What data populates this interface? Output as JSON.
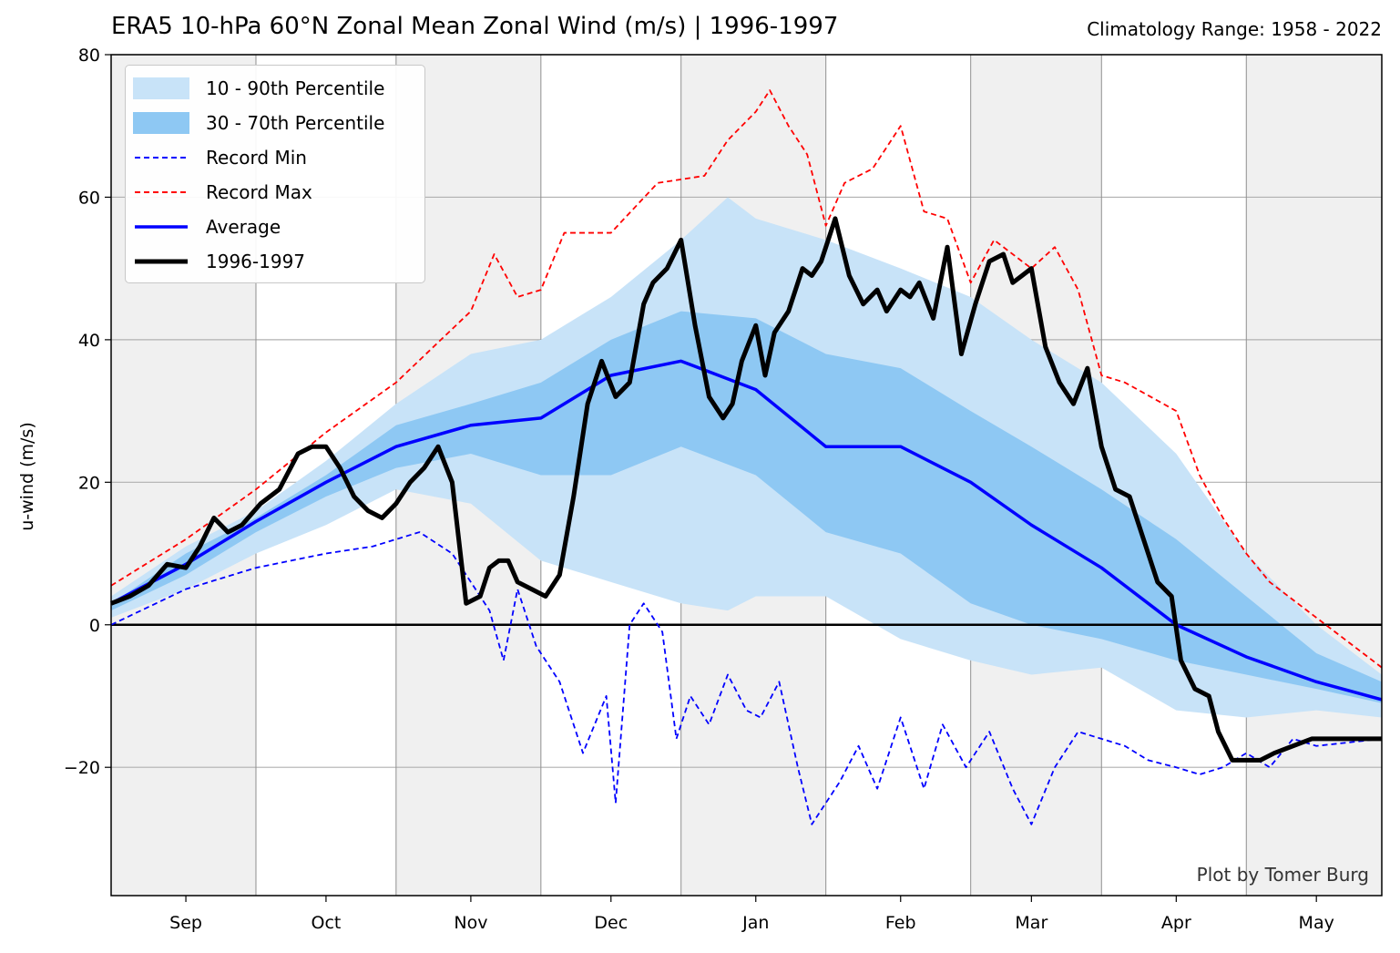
{
  "header": {
    "title": "ERA5 10-hPa 60°N Zonal Mean Zonal Wind (m/s) | 1996-1997",
    "subtitle": "Climatology Range: 1958 - 2022"
  },
  "credit": "Plot by Tomer Burg",
  "colors": {
    "band_10_90": "#c8e3f8",
    "band_30_70": "#8ec8f3",
    "record_min": "#0000ff",
    "record_max": "#ff0000",
    "average": "#0000ff",
    "season": "#000000",
    "shade": "#f0f0f0",
    "grid": "#b0b0b0"
  },
  "chart_data": {
    "type": "line",
    "title": "ERA5 10-hPa 60°N Zonal Mean Zonal Wind (m/s) | 1996-1997",
    "xlabel": "",
    "ylabel": "u-wind (m/s)",
    "ylim": [
      -38,
      80
    ],
    "yticks": [
      -20,
      0,
      20,
      40,
      60,
      80
    ],
    "ytick_labels": [
      "−20",
      "0",
      "20",
      "40",
      "60",
      "80"
    ],
    "xlim": [
      "1996-08-16",
      "1997-05-15"
    ],
    "xticks": [
      {
        "label": "Sep",
        "date": "1996-09-01"
      },
      {
        "label": "Oct",
        "date": "1996-10-01"
      },
      {
        "label": "Nov",
        "date": "1996-11-01"
      },
      {
        "label": "Dec",
        "date": "1996-12-01"
      },
      {
        "label": "Jan",
        "date": "1997-01-01"
      },
      {
        "label": "Feb",
        "date": "1997-02-01"
      },
      {
        "label": "Mar",
        "date": "1997-03-01"
      },
      {
        "label": "Apr",
        "date": "1997-04-01"
      },
      {
        "label": "May",
        "date": "1997-05-01"
      }
    ],
    "vertical_lines": [
      "1996-09-16",
      "1996-10-16",
      "1996-11-16",
      "1996-12-16",
      "1997-01-16",
      "1997-02-16",
      "1997-03-16",
      "1997-04-16"
    ],
    "shaded_periods": [
      [
        "1996-08-16",
        "1996-09-16"
      ],
      [
        "1996-10-16",
        "1996-11-16"
      ],
      [
        "1996-12-16",
        "1997-01-16"
      ],
      [
        "1997-02-16",
        "1997-03-16"
      ],
      [
        "1997-04-16",
        "1997-05-15"
      ]
    ],
    "zero_line": 0,
    "grid": true,
    "legend": {
      "placement": "top-left",
      "entries": [
        {
          "label": "10 - 90th Percentile",
          "style": "fill",
          "color": "#c8e3f8"
        },
        {
          "label": "30 - 70th Percentile",
          "style": "fill",
          "color": "#8ec8f3"
        },
        {
          "label": "Record Min",
          "style": "dashed",
          "color": "#0000ff"
        },
        {
          "label": "Record Max",
          "style": "dashed",
          "color": "#ff0000"
        },
        {
          "label": "Average",
          "style": "solid",
          "color": "#0000ff"
        },
        {
          "label": "1996-1997",
          "style": "solid-thick",
          "color": "#000000"
        }
      ]
    },
    "bands": [
      {
        "name": "10 - 90th Percentile",
        "x": [
          "1996-08-16",
          "1996-09-01",
          "1996-09-16",
          "1996-10-01",
          "1996-10-16",
          "1996-11-01",
          "1996-11-16",
          "1996-12-01",
          "1996-12-16",
          "1996-12-26",
          "1997-01-01",
          "1997-01-16",
          "1997-02-01",
          "1997-02-16",
          "1997-03-01",
          "1997-03-16",
          "1997-04-01",
          "1997-04-16",
          "1997-05-01",
          "1997-05-15"
        ],
        "lower": [
          1,
          5,
          10,
          14,
          19,
          17,
          9,
          6,
          3,
          2,
          4,
          4,
          -2,
          -5,
          -7,
          -6,
          -12,
          -13,
          -12,
          -13
        ],
        "upper": [
          4,
          11,
          16,
          23,
          31,
          38,
          40,
          46,
          54,
          60,
          57,
          54,
          50,
          46,
          40,
          34,
          24,
          10,
          0,
          -7
        ]
      },
      {
        "name": "30 - 70th Percentile",
        "x": [
          "1996-08-16",
          "1996-09-01",
          "1996-09-16",
          "1996-10-01",
          "1996-10-16",
          "1996-11-01",
          "1996-11-16",
          "1996-12-01",
          "1996-12-16",
          "1997-01-01",
          "1997-01-16",
          "1997-02-01",
          "1997-02-16",
          "1997-03-01",
          "1997-03-16",
          "1997-04-01",
          "1997-04-16",
          "1997-05-01",
          "1997-05-15"
        ],
        "lower": [
          2,
          7,
          13,
          18,
          22,
          24,
          21,
          21,
          25,
          21,
          13,
          10,
          3,
          0,
          -2,
          -5,
          -7,
          -9,
          -11
        ],
        "upper": [
          3,
          10,
          15,
          21,
          28,
          31,
          34,
          40,
          44,
          43,
          38,
          36,
          30,
          25,
          19,
          12,
          4,
          -4,
          -8
        ]
      }
    ],
    "series": [
      {
        "name": "Average",
        "x": [
          "1996-08-16",
          "1996-09-01",
          "1996-09-16",
          "1996-10-01",
          "1996-10-16",
          "1996-11-01",
          "1996-11-16",
          "1996-12-01",
          "1996-12-16",
          "1996-12-26",
          "1997-01-01",
          "1997-01-16",
          "1997-02-01",
          "1997-02-16",
          "1997-03-01",
          "1997-03-16",
          "1997-04-01",
          "1997-04-16",
          "1997-05-01",
          "1997-05-15"
        ],
        "values": [
          3,
          8.5,
          14.5,
          20,
          25,
          28,
          29,
          35,
          37,
          34.5,
          33,
          25,
          25,
          20,
          14,
          8,
          0,
          -4.5,
          -8,
          -10.5
        ]
      },
      {
        "name": "Record Max",
        "x": [
          "1996-08-16",
          "1996-09-01",
          "1996-09-16",
          "1996-10-01",
          "1996-10-16",
          "1996-11-01",
          "1996-11-06",
          "1996-11-11",
          "1996-11-16",
          "1996-11-21",
          "1996-11-26",
          "1996-12-01",
          "1996-12-11",
          "1996-12-21",
          "1996-12-26",
          "1997-01-01",
          "1997-01-04",
          "1997-01-08",
          "1997-01-12",
          "1997-01-16",
          "1997-01-20",
          "1997-01-26",
          "1997-02-01",
          "1997-02-06",
          "1997-02-11",
          "1997-02-16",
          "1997-02-21",
          "1997-03-01",
          "1997-03-06",
          "1997-03-11",
          "1997-03-16",
          "1997-03-21",
          "1997-04-01",
          "1997-04-06",
          "1997-04-11",
          "1997-04-16",
          "1997-04-21",
          "1997-05-01",
          "1997-05-15"
        ],
        "values": [
          5.5,
          12,
          19,
          27,
          34,
          44,
          52,
          46,
          47,
          55,
          55,
          55,
          62,
          63,
          68,
          72,
          75,
          70,
          66,
          56,
          62,
          64,
          70,
          58,
          57,
          48,
          54,
          50,
          53,
          47,
          35,
          34,
          30,
          21,
          15,
          10,
          6,
          1,
          -6
        ]
      },
      {
        "name": "Record Min",
        "x": [
          "1996-08-16",
          "1996-09-01",
          "1996-09-16",
          "1996-10-01",
          "1996-10-11",
          "1996-10-21",
          "1996-10-28",
          "1996-11-01",
          "1996-11-05",
          "1996-11-08",
          "1996-11-11",
          "1996-11-15",
          "1996-11-20",
          "1996-11-25",
          "1996-11-30",
          "1996-12-02",
          "1996-12-05",
          "1996-12-08",
          "1996-12-12",
          "1996-12-15",
          "1996-12-18",
          "1996-12-22",
          "1996-12-26",
          "1996-12-30",
          "1997-01-02",
          "1997-01-06",
          "1997-01-10",
          "1997-01-13",
          "1997-01-16",
          "1997-01-19",
          "1997-01-23",
          "1997-01-27",
          "1997-02-01",
          "1997-02-06",
          "1997-02-10",
          "1997-02-15",
          "1997-02-20",
          "1997-02-25",
          "1997-03-01",
          "1997-03-06",
          "1997-03-11",
          "1997-03-16",
          "1997-03-21",
          "1997-03-26",
          "1997-04-01",
          "1997-04-06",
          "1997-04-11",
          "1997-04-16",
          "1997-04-21",
          "1997-04-26",
          "1997-05-01",
          "1997-05-15"
        ],
        "values": [
          0,
          5,
          8,
          10,
          11,
          13,
          10,
          6,
          2,
          -5,
          5,
          -3,
          -8,
          -18,
          -10,
          -25,
          0,
          3,
          -1,
          -16,
          -10,
          -14,
          -7,
          -12,
          -13,
          -8,
          -20,
          -28,
          -25,
          -22,
          -17,
          -23,
          -13,
          -23,
          -14,
          -20,
          -15,
          -23,
          -28,
          -20,
          -15,
          -16,
          -17,
          -19,
          -20,
          -21,
          -20,
          -18,
          -20,
          -16,
          -17,
          -16
        ]
      },
      {
        "name": "1996-1997",
        "x": [
          "1996-08-16",
          "1996-08-20",
          "1996-08-24",
          "1996-08-28",
          "1996-09-01",
          "1996-09-04",
          "1996-09-07",
          "1996-09-10",
          "1996-09-13",
          "1996-09-17",
          "1996-09-21",
          "1996-09-25",
          "1996-09-28",
          "1996-10-01",
          "1996-10-04",
          "1996-10-07",
          "1996-10-10",
          "1996-10-13",
          "1996-10-16",
          "1996-10-19",
          "1996-10-22",
          "1996-10-25",
          "1996-10-28",
          "1996-10-31",
          "1996-11-03",
          "1996-11-05",
          "1996-11-07",
          "1996-11-09",
          "1996-11-11",
          "1996-11-14",
          "1996-11-17",
          "1996-11-20",
          "1996-11-23",
          "1996-11-26",
          "1996-11-29",
          "1996-12-02",
          "1996-12-05",
          "1996-12-08",
          "1996-12-10",
          "1996-12-13",
          "1996-12-16",
          "1996-12-19",
          "1996-12-22",
          "1996-12-25",
          "1996-12-27",
          "1996-12-29",
          "1997-01-01",
          "1997-01-03",
          "1997-01-05",
          "1997-01-08",
          "1997-01-11",
          "1997-01-13",
          "1997-01-15",
          "1997-01-18",
          "1997-01-21",
          "1997-01-24",
          "1997-01-27",
          "1997-01-29",
          "1997-02-01",
          "1997-02-03",
          "1997-02-05",
          "1997-02-08",
          "1997-02-11",
          "1997-02-14",
          "1997-02-17",
          "1997-02-20",
          "1997-02-23",
          "1997-02-25",
          "1997-02-27",
          "1997-03-01",
          "1997-03-04",
          "1997-03-07",
          "1997-03-10",
          "1997-03-13",
          "1997-03-16",
          "1997-03-19",
          "1997-03-22",
          "1997-03-25",
          "1997-03-28",
          "1997-03-31",
          "1997-04-02",
          "1997-04-05",
          "1997-04-08",
          "1997-04-10",
          "1997-04-13",
          "1997-04-16",
          "1997-04-19",
          "1997-04-22",
          "1997-04-26",
          "1997-04-30",
          "1997-05-04",
          "1997-05-08",
          "1997-05-12",
          "1997-05-15"
        ],
        "values": [
          3,
          4,
          5.5,
          8.5,
          8,
          11,
          15,
          13,
          14,
          17,
          19,
          24,
          25,
          25,
          22,
          18,
          16,
          15,
          17,
          20,
          22,
          25,
          20,
          3,
          4,
          8,
          9,
          9,
          6,
          5,
          4,
          7,
          18,
          31,
          37,
          32,
          34,
          45,
          48,
          50,
          54,
          42,
          32,
          29,
          31,
          37,
          42,
          35,
          41,
          44,
          50,
          49,
          51,
          57,
          49,
          45,
          47,
          44,
          47,
          46,
          48,
          43,
          53,
          38,
          45,
          51,
          52,
          48,
          49,
          50,
          39,
          34,
          31,
          36,
          25,
          19,
          18,
          12,
          6,
          4,
          -5,
          -9,
          -10,
          -15,
          -19,
          -19,
          -19,
          -18,
          -17,
          -16,
          -16,
          -16,
          -16,
          -16
        ]
      }
    ]
  }
}
